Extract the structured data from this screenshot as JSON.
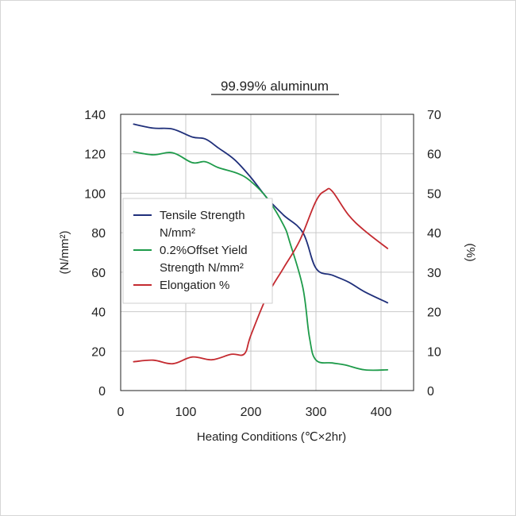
{
  "chart_data": {
    "type": "line",
    "title": "99.99% aluminum",
    "xlabel": "Heating Conditions (℃×2hr)",
    "ylabel_left": "(N/mm²)",
    "ylabel_right": "(%)",
    "xlim": [
      0,
      450
    ],
    "ylim_left": [
      0,
      140
    ],
    "ylim_right": [
      0,
      70
    ],
    "x_ticks": [
      {
        "value": 0,
        "label": "0"
      },
      {
        "value": 100,
        "label": "100"
      },
      {
        "value": 200,
        "label": "200"
      },
      {
        "value": 300,
        "label": "300"
      },
      {
        "value": 400,
        "label": "400"
      }
    ],
    "y_ticks_left": [
      {
        "value": 0,
        "label": "0"
      },
      {
        "value": 20,
        "label": "20"
      },
      {
        "value": 40,
        "label": "40"
      },
      {
        "value": 60,
        "label": "60"
      },
      {
        "value": 80,
        "label": "80"
      },
      {
        "value": 100,
        "label": "100"
      },
      {
        "value": 120,
        "label": "120"
      },
      {
        "value": 140,
        "label": "140"
      }
    ],
    "y_ticks_right": [
      {
        "value": 0,
        "label": "0"
      },
      {
        "value": 10,
        "label": "10"
      },
      {
        "value": 20,
        "label": "20"
      },
      {
        "value": 30,
        "label": "30"
      },
      {
        "value": 40,
        "label": "40"
      },
      {
        "value": 50,
        "label": "50"
      },
      {
        "value": 60,
        "label": "60"
      },
      {
        "value": 70,
        "label": "70"
      }
    ],
    "grid": true,
    "legend_position": "center-left",
    "series": [
      {
        "name": "Tensile Strength N/mm²",
        "legend_lines": [
          "Tensile Strength",
          "N/mm²"
        ],
        "axis": "left",
        "color": "#1f2f7a",
        "x": [
          20,
          50,
          80,
          110,
          130,
          150,
          175,
          200,
          225,
          250,
          280,
          300,
          325,
          350,
          375,
          410
        ],
        "y": [
          135,
          133,
          132.5,
          128.5,
          127.5,
          123,
          117,
          108,
          97.5,
          89,
          80,
          62,
          58.5,
          55,
          50,
          44.5
        ]
      },
      {
        "name": "0.2%Offset Yield Strength N/mm²",
        "legend_lines": [
          "0.2%Offset Yield",
          "Strength N/mm²"
        ],
        "axis": "left",
        "color": "#1e9b4a",
        "x": [
          20,
          50,
          80,
          110,
          130,
          150,
          180,
          200,
          225,
          250,
          260,
          280,
          290,
          300,
          325,
          345,
          375,
          410
        ],
        "y": [
          121,
          119.5,
          120.5,
          115.5,
          116,
          113,
          110,
          106,
          97.5,
          84,
          75,
          52,
          27,
          15.5,
          14,
          13,
          10.5,
          10.5
        ]
      },
      {
        "name": "Elongation %",
        "legend_lines": [
          "Elongation %"
        ],
        "axis": "right",
        "color": "#c42a30",
        "x": [
          20,
          50,
          80,
          110,
          140,
          170,
          190,
          200,
          225,
          250,
          275,
          300,
          315,
          325,
          350,
          375,
          410
        ],
        "y": [
          7.3,
          7.7,
          6.8,
          8.5,
          7.8,
          9.2,
          9.3,
          14,
          24,
          31,
          38,
          48,
          50.7,
          50.5,
          44.5,
          40.5,
          36
        ]
      }
    ]
  }
}
